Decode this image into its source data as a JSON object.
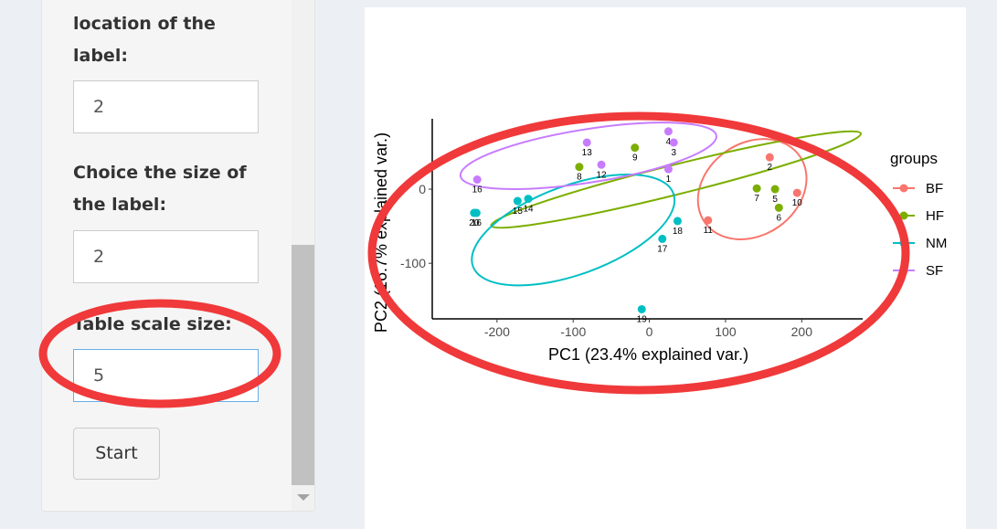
{
  "sidebar": {
    "label_location_heading": "location of the label:",
    "label_location_value": "2",
    "label_size_heading": "Choice the size of the label:",
    "label_size_value": "2",
    "table_scale_heading": "Table scale size:",
    "table_scale_value": "5",
    "start_label": "Start"
  },
  "annotations": {
    "color": "#f0393a"
  },
  "chart_data": {
    "type": "scatter",
    "xlabel": "PC1 (23.4% explained var.)",
    "ylabel": "PC2 (16.7% explained var.)",
    "xlim": [
      -285,
      280
    ],
    "ylim": [
      -175,
      95
    ],
    "x_ticks": [
      -200,
      -100,
      0,
      100,
      200
    ],
    "y_ticks": [
      0,
      -100
    ],
    "grid": false,
    "legend_title": "groups",
    "legend_placement": "right",
    "series": [
      {
        "name": "BF",
        "color": "#f8766d",
        "points": [
          {
            "label": "2",
            "x": 158,
            "y": 43
          },
          {
            "label": "10",
            "x": 194,
            "y": -5
          },
          {
            "label": "11",
            "x": 77,
            "y": -42
          }
        ],
        "ellipse": {
          "cx": 135,
          "cy": 0,
          "rx": 76,
          "ry": 62,
          "angle": -35
        }
      },
      {
        "name": "HF",
        "color": "#7cae00",
        "points": [
          {
            "label": "7",
            "x": 141,
            "y": 1
          },
          {
            "label": "5",
            "x": 165,
            "y": 0
          },
          {
            "label": "6",
            "x": 170,
            "y": -25
          },
          {
            "label": "9",
            "x": -19,
            "y": 56
          },
          {
            "label": "8",
            "x": -92,
            "y": 30
          }
        ],
        "ellipse": {
          "cx": 35,
          "cy": 13,
          "rx": 250,
          "ry": 20,
          "angle": -14
        }
      },
      {
        "name": "NM",
        "color": "#00bfc4",
        "points": [
          {
            "label": "16",
            "x": -227,
            "y": -32
          },
          {
            "label": "20",
            "x": -230,
            "y": -32
          },
          {
            "label": "15",
            "x": -173,
            "y": -16
          },
          {
            "label": "14",
            "x": -159,
            "y": -13
          },
          {
            "label": "18",
            "x": 37,
            "y": -43
          },
          {
            "label": "17",
            "x": 17,
            "y": -67
          },
          {
            "label": "19",
            "x": -10,
            "y": -162
          }
        ],
        "ellipse": {
          "cx": -100,
          "cy": -55,
          "rx": 140,
          "ry": 60,
          "angle": -20
        }
      },
      {
        "name": "SF",
        "color": "#c77cff",
        "points": [
          {
            "label": "16",
            "x": -226,
            "y": 13
          },
          {
            "label": "13",
            "x": -82,
            "y": 63
          },
          {
            "label": "12",
            "x": -63,
            "y": 33
          },
          {
            "label": "4",
            "x": 25,
            "y": 78
          },
          {
            "label": "3",
            "x": 32,
            "y": 63
          },
          {
            "label": "1",
            "x": 25,
            "y": 27
          }
        ],
        "ellipse": {
          "cx": -80,
          "cy": 45,
          "rx": 170,
          "ry": 36,
          "angle": -9
        }
      }
    ]
  }
}
